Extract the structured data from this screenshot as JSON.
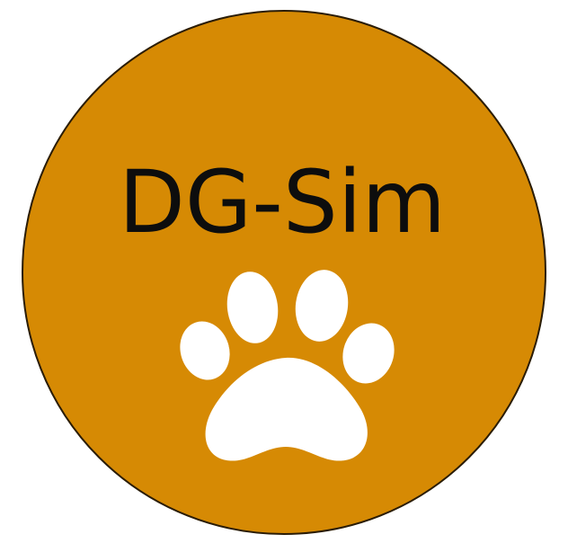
{
  "logo": {
    "text": "DG-Sim",
    "colors": {
      "badge_fill": "#D68A04",
      "badge_border": "#2a1c06",
      "text": "#0d0d0d",
      "paw": "#ffffff"
    },
    "icon": "paw-print-icon"
  }
}
